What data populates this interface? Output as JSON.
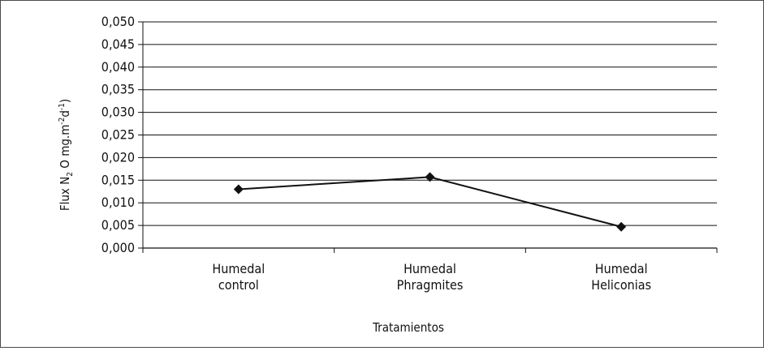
{
  "chart_data": {
    "type": "line",
    "title": "",
    "xlabel": "Tratamientos",
    "ylabel": {
      "base": "Flux N",
      "sub": "2",
      "mid": "O mg.m",
      "sup1": "-2",
      "mid2": "d",
      "sup2": "-1",
      "close": ")",
      "open": "("
    },
    "categories": [
      [
        "Humedal",
        "control"
      ],
      [
        "Humedal",
        "Phragmites"
      ],
      [
        "Humedal",
        "Heliconias"
      ]
    ],
    "series": [
      {
        "values": [
          0.013,
          0.0157,
          0.0047
        ]
      }
    ],
    "ylim": [
      0,
      0.05
    ],
    "yticks": [
      "0,000",
      "0,005",
      "0,010",
      "0,015",
      "0,020",
      "0,025",
      "0,030",
      "0,035",
      "0,040",
      "0,045",
      "0,050"
    ],
    "grid": true,
    "legend": "none",
    "marker": "diamond",
    "colors": {
      "line": "#111111",
      "grid": "#111111",
      "axis": "#111111"
    }
  }
}
